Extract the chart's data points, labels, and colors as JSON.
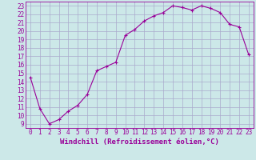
{
  "x": [
    0,
    1,
    2,
    3,
    4,
    5,
    6,
    7,
    8,
    9,
    10,
    11,
    12,
    13,
    14,
    15,
    16,
    17,
    18,
    19,
    20,
    21,
    22,
    23
  ],
  "y": [
    14.5,
    10.8,
    9.0,
    9.5,
    10.5,
    11.2,
    12.5,
    15.3,
    15.8,
    16.3,
    19.5,
    20.2,
    21.2,
    21.8,
    22.2,
    23.0,
    22.8,
    22.5,
    23.0,
    22.7,
    22.2,
    20.8,
    20.5,
    17.2
  ],
  "xlim": [
    -0.5,
    23.5
  ],
  "ylim": [
    8.5,
    23.5
  ],
  "yticks": [
    9,
    10,
    11,
    12,
    13,
    14,
    15,
    16,
    17,
    18,
    19,
    20,
    21,
    22,
    23
  ],
  "xticks": [
    0,
    1,
    2,
    3,
    4,
    5,
    6,
    7,
    8,
    9,
    10,
    11,
    12,
    13,
    14,
    15,
    16,
    17,
    18,
    19,
    20,
    21,
    22,
    23
  ],
  "xlabel": "Windchill (Refroidissement éolien,°C)",
  "line_color": "#990099",
  "marker": "+",
  "bg_color": "#cce8e8",
  "grid_color": "#aaaacc",
  "xlabel_fontsize": 6.5,
  "tick_fontsize": 5.5
}
